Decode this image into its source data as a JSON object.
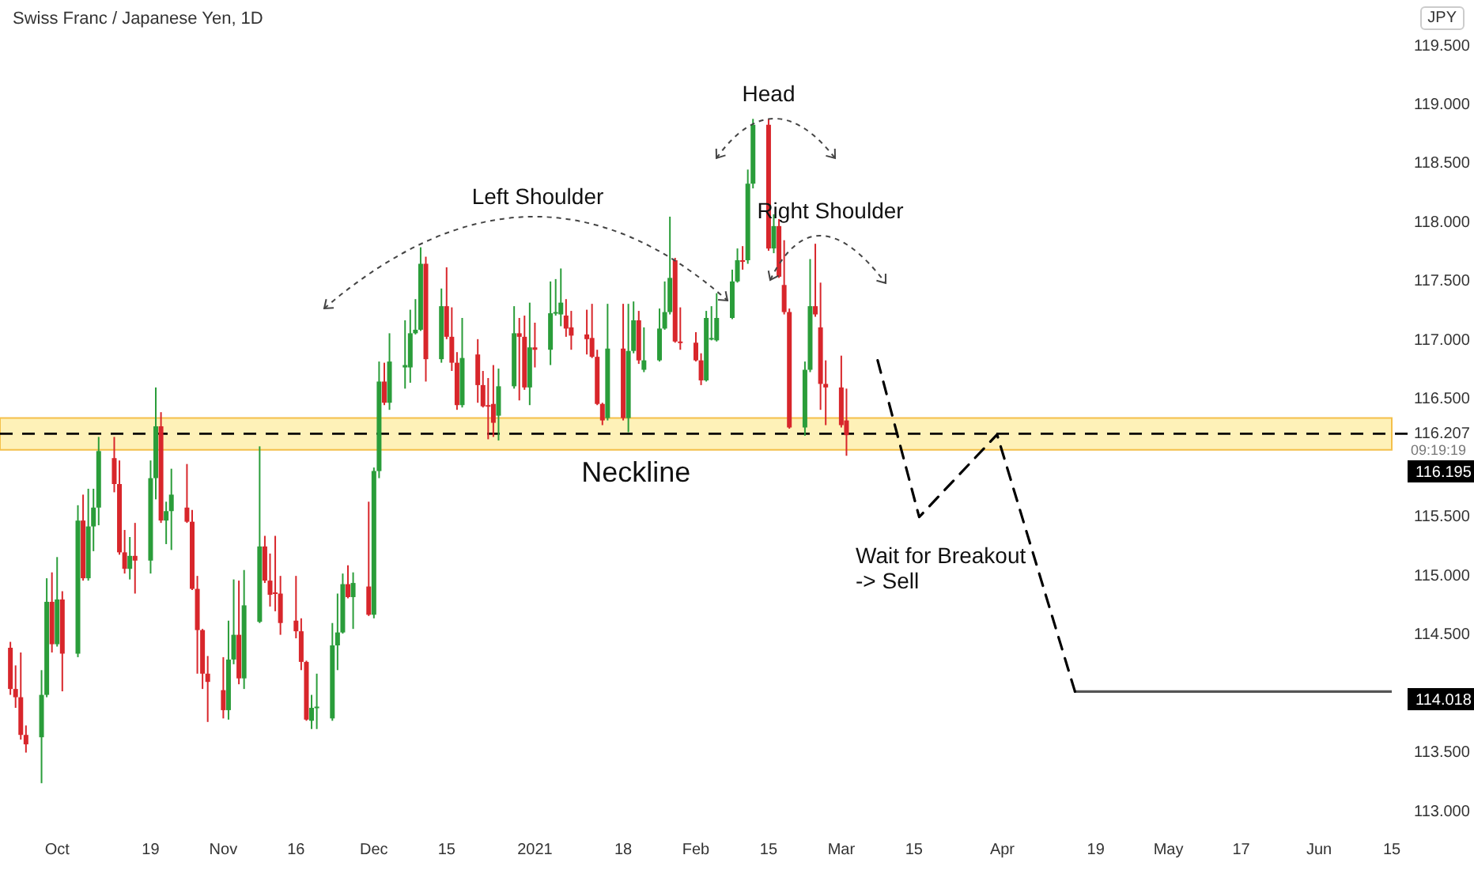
{
  "chart_data": {
    "type": "candlestick",
    "title": "Swiss Franc / Japanese Yen, 1D",
    "x": [
      "2020-09-22",
      "2020-09-23",
      "2020-09-24",
      "2020-09-25",
      "2020-09-28",
      "2020-09-29",
      "2020-09-30",
      "2020-10-01",
      "2020-10-02",
      "2020-10-05",
      "2020-10-06",
      "2020-10-07",
      "2020-10-08",
      "2020-10-09",
      "2020-10-12",
      "2020-10-13",
      "2020-10-14",
      "2020-10-15",
      "2020-10-16",
      "2020-10-19",
      "2020-10-20",
      "2020-10-21",
      "2020-10-22",
      "2020-10-23",
      "2020-10-26",
      "2020-10-27",
      "2020-10-28",
      "2020-10-29",
      "2020-10-30",
      "2020-11-02",
      "2020-11-03",
      "2020-11-04",
      "2020-11-05",
      "2020-11-06",
      "2020-11-09",
      "2020-11-10",
      "2020-11-11",
      "2020-11-12",
      "2020-11-13",
      "2020-11-16",
      "2020-11-17",
      "2020-11-18",
      "2020-11-19",
      "2020-11-20",
      "2020-11-23",
      "2020-11-24",
      "2020-11-25",
      "2020-11-26",
      "2020-11-27",
      "2020-11-30",
      "2020-12-01",
      "2020-12-02",
      "2020-12-03",
      "2020-12-04",
      "2020-12-07",
      "2020-12-08",
      "2020-12-09",
      "2020-12-10",
      "2020-12-11",
      "2020-12-14",
      "2020-12-15",
      "2020-12-16",
      "2020-12-17",
      "2020-12-18",
      "2020-12-21",
      "2020-12-22",
      "2020-12-23",
      "2020-12-24",
      "2020-12-25",
      "2020-12-28",
      "2020-12-29",
      "2020-12-30",
      "2020-12-31",
      "2021-01-01",
      "2021-01-04",
      "2021-01-05",
      "2021-01-06",
      "2021-01-07",
      "2021-01-08",
      "2021-01-11",
      "2021-01-12",
      "2021-01-13",
      "2021-01-14",
      "2021-01-15",
      "2021-01-18",
      "2021-01-19",
      "2021-01-20",
      "2021-01-21",
      "2021-01-22",
      "2021-01-25",
      "2021-01-26",
      "2021-01-27",
      "2021-01-28",
      "2021-01-29",
      "2021-02-01",
      "2021-02-02",
      "2021-02-03",
      "2021-02-04",
      "2021-02-05",
      "2021-02-08",
      "2021-02-09",
      "2021-02-10",
      "2021-02-11",
      "2021-02-12",
      "2021-02-15",
      "2021-02-16",
      "2021-02-17",
      "2021-02-18",
      "2021-02-19",
      "2021-02-22",
      "2021-02-23",
      "2021-02-24",
      "2021-02-25",
      "2021-02-26",
      "2021-03-01",
      "2021-03-02"
    ],
    "ohlc": [
      [
        114.39,
        114.44,
        113.99,
        114.04
      ],
      [
        114.04,
        114.24,
        113.88,
        113.97
      ],
      [
        113.97,
        114.35,
        113.61,
        113.65
      ],
      [
        113.65,
        113.73,
        113.5,
        113.57
      ],
      [
        113.63,
        114.2,
        113.24,
        113.99
      ],
      [
        113.99,
        114.98,
        113.97,
        114.78
      ],
      [
        114.78,
        115.03,
        114.35,
        114.42
      ],
      [
        114.42,
        115.16,
        114.4,
        114.8
      ],
      [
        114.8,
        114.87,
        114.02,
        114.34
      ],
      [
        114.34,
        115.6,
        114.31,
        115.47
      ],
      [
        115.47,
        115.69,
        114.96,
        114.98
      ],
      [
        114.98,
        115.74,
        114.96,
        115.42
      ],
      [
        115.42,
        115.74,
        115.21,
        115.58
      ],
      [
        115.58,
        116.18,
        115.43,
        116.06
      ],
      [
        116.0,
        116.18,
        115.71,
        115.78
      ],
      [
        115.78,
        115.98,
        115.18,
        115.2
      ],
      [
        115.2,
        115.39,
        115.02,
        115.06
      ],
      [
        115.06,
        115.33,
        114.97,
        115.17
      ],
      [
        115.17,
        115.45,
        114.85,
        115.13
      ],
      [
        115.13,
        115.98,
        115.02,
        115.83
      ],
      [
        115.83,
        116.6,
        115.65,
        116.27
      ],
      [
        116.27,
        116.39,
        115.45,
        115.47
      ],
      [
        115.47,
        115.63,
        115.27,
        115.55
      ],
      [
        115.55,
        115.91,
        115.22,
        115.69
      ],
      [
        115.58,
        115.95,
        115.45,
        115.46
      ],
      [
        115.46,
        115.56,
        114.88,
        114.89
      ],
      [
        114.89,
        115.0,
        114.17,
        114.54
      ],
      [
        114.54,
        114.55,
        114.04,
        114.17
      ],
      [
        114.17,
        114.32,
        113.76,
        114.1
      ],
      [
        114.03,
        114.31,
        113.79,
        113.86
      ],
      [
        113.86,
        114.62,
        113.78,
        114.29
      ],
      [
        114.29,
        114.97,
        114.25,
        114.5
      ],
      [
        114.5,
        114.96,
        114.08,
        114.13
      ],
      [
        114.13,
        115.05,
        114.04,
        114.75
      ],
      [
        114.61,
        116.1,
        114.6,
        115.25
      ],
      [
        115.25,
        115.34,
        114.94,
        114.96
      ],
      [
        114.96,
        115.19,
        114.74,
        114.84
      ],
      [
        114.86,
        115.34,
        114.7,
        114.85
      ],
      [
        114.85,
        115.0,
        114.5,
        114.6
      ],
      [
        114.62,
        115.0,
        114.47,
        114.53
      ],
      [
        114.53,
        114.64,
        114.2,
        114.27
      ],
      [
        114.27,
        114.28,
        113.77,
        113.78
      ],
      [
        113.77,
        113.99,
        113.7,
        113.88
      ],
      [
        113.88,
        114.17,
        113.7,
        113.89
      ],
      [
        113.79,
        114.6,
        113.77,
        114.41
      ],
      [
        114.41,
        114.85,
        114.2,
        114.52
      ],
      [
        114.52,
        115.02,
        114.51,
        114.93
      ],
      [
        114.93,
        115.09,
        114.81,
        114.82
      ],
      [
        114.82,
        115.03,
        114.55,
        114.94
      ],
      [
        114.91,
        115.63,
        114.66,
        114.67
      ],
      [
        114.67,
        115.92,
        114.64,
        115.89
      ],
      [
        115.89,
        116.82,
        115.83,
        116.65
      ],
      [
        116.65,
        116.81,
        116.45,
        116.47
      ],
      [
        116.47,
        117.06,
        116.41,
        116.82
      ],
      [
        116.77,
        117.17,
        116.59,
        116.79
      ],
      [
        116.77,
        117.26,
        116.64,
        117.06
      ],
      [
        117.06,
        117.35,
        117.05,
        117.09
      ],
      [
        117.09,
        117.79,
        117.08,
        117.65
      ],
      [
        117.65,
        117.71,
        116.65,
        116.84
      ],
      [
        116.84,
        117.44,
        116.81,
        117.29
      ],
      [
        117.29,
        117.62,
        117.01,
        117.03
      ],
      [
        117.03,
        117.28,
        116.74,
        116.81
      ],
      [
        116.81,
        116.9,
        116.41,
        116.45
      ],
      [
        116.45,
        117.19,
        116.43,
        116.85
      ],
      [
        116.88,
        117.01,
        116.47,
        116.62
      ],
      [
        116.62,
        116.74,
        116.43,
        116.44
      ],
      [
        116.45,
        116.68,
        116.16,
        116.44
      ],
      [
        116.46,
        116.79,
        116.18,
        116.3
      ],
      [
        116.36,
        116.76,
        116.15,
        116.61
      ],
      [
        116.61,
        117.29,
        116.59,
        117.06
      ],
      [
        117.06,
        117.19,
        116.49,
        117.03
      ],
      [
        117.03,
        117.21,
        116.58,
        116.6
      ],
      [
        116.6,
        117.32,
        116.45,
        116.94
      ],
      [
        116.94,
        117.15,
        116.77,
        116.92
      ],
      [
        116.92,
        117.5,
        116.79,
        117.23
      ],
      [
        117.23,
        117.52,
        117.21,
        117.24
      ],
      [
        117.22,
        117.61,
        117.12,
        117.32
      ],
      [
        117.21,
        117.35,
        117.03,
        117.1
      ],
      [
        117.11,
        117.25,
        116.92,
        117.04
      ],
      [
        117.05,
        117.26,
        116.88,
        117.01
      ],
      [
        117.02,
        117.31,
        116.85,
        116.86
      ],
      [
        116.86,
        116.92,
        116.45,
        116.46
      ],
      [
        116.46,
        116.47,
        116.28,
        116.32
      ],
      [
        116.34,
        117.31,
        116.32,
        116.93
      ],
      [
        116.93,
        117.31,
        116.32,
        116.34
      ],
      [
        116.34,
        117.31,
        116.22,
        116.91
      ],
      [
        116.91,
        117.33,
        116.89,
        117.17
      ],
      [
        117.17,
        117.25,
        116.8,
        116.83
      ],
      [
        116.75,
        117.11,
        116.73,
        116.83
      ],
      [
        116.83,
        117.27,
        116.82,
        117.1
      ],
      [
        117.1,
        117.5,
        117.09,
        117.24
      ],
      [
        117.24,
        118.05,
        117.22,
        117.53
      ],
      [
        117.68,
        117.7,
        116.98,
        116.99
      ],
      [
        116.99,
        117.28,
        116.92,
        116.98
      ],
      [
        116.98,
        117.07,
        116.82,
        116.83
      ],
      [
        116.83,
        116.89,
        116.62,
        116.66
      ],
      [
        116.66,
        117.25,
        116.65,
        117.19
      ],
      [
        117.01,
        117.29,
        117.0,
        117.02
      ],
      [
        117.0,
        117.4,
        116.99,
        117.19
      ],
      [
        117.19,
        117.6,
        117.18,
        117.5
      ],
      [
        117.5,
        117.78,
        117.49,
        117.68
      ],
      [
        117.68,
        117.8,
        117.6,
        117.67
      ],
      [
        117.68,
        118.45,
        117.65,
        118.33
      ],
      [
        118.33,
        118.88,
        118.29,
        118.83
      ],
      [
        118.83,
        118.88,
        117.76,
        117.78
      ],
      [
        117.78,
        118.07,
        117.74,
        117.97
      ],
      [
        117.97,
        118.03,
        117.53,
        117.54
      ],
      [
        117.47,
        117.85,
        117.22,
        117.24
      ],
      [
        117.24,
        117.27,
        116.25,
        116.26
      ],
      [
        116.26,
        116.82,
        116.19,
        116.75
      ],
      [
        116.75,
        117.69,
        116.73,
        117.29
      ],
      [
        117.29,
        117.82,
        117.2,
        117.22
      ],
      [
        117.11,
        117.49,
        116.41,
        116.63
      ],
      [
        116.63,
        116.83,
        116.28,
        116.6
      ],
      [
        116.6,
        116.87,
        116.26,
        116.28
      ],
      [
        116.32,
        116.59,
        116.02,
        116.195
      ]
    ],
    "series": [
      {
        "type": "line",
        "x": [
          "2021-03-08",
          "2021-03-16",
          "2021-03-31",
          "2021-04-15"
        ],
        "values": [
          116.83,
          115.5,
          116.2,
          114.018
        ],
        "color": "#000000",
        "line_style": "dashed"
      },
      {
        "type": "line",
        "x": [
          "2021-04-15",
          "2021-06-15"
        ],
        "values": [
          114.018,
          114.018
        ],
        "color": "#555555"
      }
    ],
    "xlim": [
      "2020-09-20",
      "2021-06-15"
    ],
    "xticks": [
      {
        "value": "2020-10-01",
        "label": "Oct"
      },
      {
        "value": "2020-10-19",
        "label": "19"
      },
      {
        "value": "2020-11-02",
        "label": "Nov"
      },
      {
        "value": "2020-11-16",
        "label": "16"
      },
      {
        "value": "2020-12-01",
        "label": "Dec"
      },
      {
        "value": "2020-12-15",
        "label": "15"
      },
      {
        "value": "2021-01-01",
        "label": "2021"
      },
      {
        "value": "2021-01-18",
        "label": "18"
      },
      {
        "value": "2021-02-01",
        "label": "Feb"
      },
      {
        "value": "2021-02-15",
        "label": "15"
      },
      {
        "value": "2021-03-01",
        "label": "Mar"
      },
      {
        "value": "2021-03-15",
        "label": "15"
      },
      {
        "value": "2021-04-01",
        "label": "Apr"
      },
      {
        "value": "2021-04-19",
        "label": "19"
      },
      {
        "value": "2021-05-03",
        "label": "May"
      },
      {
        "value": "2021-05-17",
        "label": "17"
      },
      {
        "value": "2021-06-01",
        "label": "Jun"
      },
      {
        "value": "2021-06-15",
        "label": "15"
      }
    ],
    "ylim": [
      113,
      119.5
    ],
    "yticks": [
      {
        "value": 113,
        "label": "113.000"
      },
      {
        "value": 113.5,
        "label": "113.500"
      },
      {
        "value": 114.5,
        "label": "114.500"
      },
      {
        "value": 115,
        "label": "115.000"
      },
      {
        "value": 115.5,
        "label": "115.500"
      },
      {
        "value": 116.5,
        "label": "116.500"
      },
      {
        "value": 117,
        "label": "117.000"
      },
      {
        "value": 117.5,
        "label": "117.500"
      },
      {
        "value": 118,
        "label": "118.000"
      },
      {
        "value": 118.5,
        "label": "118.500"
      },
      {
        "value": 119,
        "label": "119.000"
      },
      {
        "value": 119.5,
        "label": "119.500"
      }
    ],
    "ref_lines": [
      {
        "axis": "y",
        "value": 116.207,
        "label": "116.207",
        "color": "#000000",
        "line_style": "dashed"
      }
    ],
    "bands": [
      {
        "axis": "y",
        "from": 116.07,
        "to": 116.34,
        "label": "Neckline",
        "color": "#fdeb9a"
      }
    ],
    "annotations": [
      "Left Shoulder",
      "Head",
      "Right Shoulder",
      "Wait for Breakout\n-> Sell",
      "JPY",
      "09:19:19",
      "116.195",
      "114.018"
    ]
  }
}
